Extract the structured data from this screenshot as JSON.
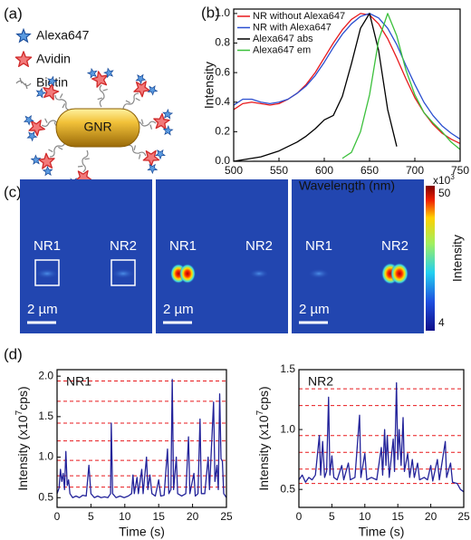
{
  "panel_labels": [
    "(a)",
    "(b)",
    "(c)",
    "(d)"
  ],
  "panel_a": {
    "legend": [
      "Alexa647",
      "Avidin",
      "Biotin"
    ],
    "rod_label": "GNR"
  },
  "panel_c": {
    "images": [
      {
        "labels": [
          "NR1",
          "NR2"
        ],
        "scale_bar": "2 µm"
      },
      {
        "labels": [
          "NR1",
          "NR2"
        ],
        "scale_bar": "2 µm"
      },
      {
        "labels": [
          "NR1",
          "NR2"
        ],
        "scale_bar": "2 µm"
      }
    ],
    "colorbar": {
      "label": "Intensity",
      "multiplier": "x10",
      "exponent": "3",
      "max_label": "50",
      "min_label": "4"
    }
  },
  "chart_data": [
    {
      "type": "line",
      "xlabel": "Wavelength (nm)",
      "ylabel": "Intensity",
      "legend_position": "upper left",
      "x": [
        500,
        510,
        520,
        530,
        540,
        550,
        560,
        570,
        580,
        590,
        600,
        610,
        620,
        630,
        640,
        650,
        660,
        670,
        680,
        690,
        700,
        710,
        720,
        730,
        740,
        750
      ],
      "xlim": [
        500,
        750
      ],
      "xticks": [
        500,
        550,
        600,
        650,
        700,
        750
      ],
      "ylim": [
        0,
        1.03
      ],
      "yticks": [
        {
          "value": 0,
          "label": "0.0"
        },
        0.2,
        0.4,
        0.6,
        0.8,
        {
          "value": 1,
          "label": "1.0"
        }
      ],
      "series": [
        {
          "name": "NR without Alexa647",
          "color": "#e8191c",
          "values": [
            0.35,
            0.39,
            0.4,
            0.39,
            0.38,
            0.39,
            0.42,
            0.46,
            0.52,
            0.6,
            0.7,
            0.8,
            0.89,
            0.96,
            1.0,
            0.99,
            0.93,
            0.83,
            0.7,
            0.56,
            0.43,
            0.33,
            0.25,
            0.19,
            0.15,
            0.12
          ]
        },
        {
          "name": "NR with Alexa647",
          "color": "#2a4fd0",
          "values": [
            0.38,
            0.42,
            0.42,
            0.4,
            0.39,
            0.4,
            0.42,
            0.46,
            0.51,
            0.58,
            0.67,
            0.77,
            0.86,
            0.93,
            0.98,
            1.0,
            0.97,
            0.9,
            0.79,
            0.65,
            0.52,
            0.4,
            0.31,
            0.24,
            0.19,
            0.15
          ]
        },
        {
          "name": "Alexa647 abs",
          "color": "#000000",
          "values": [
            0.0,
            0.01,
            0.02,
            0.03,
            0.05,
            0.07,
            0.1,
            0.13,
            0.17,
            0.22,
            0.28,
            0.31,
            0.44,
            0.66,
            0.9,
            1.0,
            0.75,
            0.35,
            0.1,
            null,
            null,
            null,
            null,
            null,
            null,
            null
          ]
        },
        {
          "name": "Alexa647 em",
          "color": "#3cc03c",
          "values": [
            null,
            null,
            null,
            null,
            null,
            null,
            null,
            null,
            null,
            null,
            null,
            null,
            0.02,
            0.06,
            0.2,
            0.45,
            0.82,
            1.0,
            0.85,
            0.62,
            0.45,
            0.33,
            0.26,
            0.2,
            0.13,
            0.08
          ]
        }
      ]
    },
    {
      "type": "trace",
      "label": "NR1",
      "xlabel": "Time (s)",
      "ylabel": {
        "text": "Intensity (x10",
        "superscript": "7",
        "suffix": "cps)"
      },
      "xlim": [
        0,
        25
      ],
      "xticks": [
        0,
        5,
        10,
        15,
        20,
        25
      ],
      "ylim": [
        0.38,
        2.08
      ],
      "yticks": [
        0.5,
        {
          "value": 1,
          "label": "1.0"
        },
        1.5,
        {
          "value": 2,
          "label": "2.0"
        }
      ],
      "levels": [
        0.63,
        0.77,
        0.96,
        1.2,
        1.42,
        1.69,
        1.94
      ],
      "levels_color": "#e8191c",
      "color": "#23239a",
      "x": [
        0,
        0.3,
        0.5,
        0.7,
        0.9,
        1.1,
        1.3,
        1.5,
        1.7,
        1.9,
        2.3,
        2.8,
        3.3,
        3.8,
        4.3,
        4.7,
        5.0,
        5.5,
        6.0,
        6.5,
        7.0,
        7.5,
        7.9,
        8.0,
        8.2,
        8.7,
        9.3,
        9.9,
        10.5,
        11.0,
        11.2,
        11.4,
        11.8,
        12.0,
        12.5,
        12.7,
        13.2,
        13.4,
        13.7,
        14.0,
        14.5,
        15.0,
        15.3,
        15.8,
        16.3,
        16.5,
        16.8,
        17.0,
        17.2,
        17.6,
        17.8,
        18.4,
        19.0,
        19.4,
        19.6,
        20.2,
        20.4,
        20.8,
        21.1,
        21.3,
        21.8,
        22.3,
        22.5,
        23.1,
        23.3,
        23.6,
        23.8,
        24.0,
        24.2,
        24.4,
        24.6,
        25.0
      ],
      "values": [
        0.55,
        0.62,
        0.85,
        0.7,
        0.8,
        0.6,
        1.07,
        0.65,
        0.72,
        0.55,
        0.5,
        0.52,
        0.5,
        0.53,
        0.52,
        0.9,
        0.55,
        0.5,
        0.52,
        0.5,
        0.51,
        0.5,
        0.55,
        1.42,
        0.55,
        0.5,
        0.52,
        0.5,
        0.52,
        0.55,
        0.78,
        0.55,
        0.75,
        0.55,
        0.85,
        0.55,
        1.0,
        0.6,
        0.78,
        0.55,
        0.52,
        0.72,
        0.52,
        0.53,
        1.1,
        0.55,
        0.6,
        1.96,
        0.6,
        1.0,
        0.55,
        0.52,
        0.55,
        1.25,
        0.55,
        0.8,
        0.52,
        0.55,
        1.47,
        0.55,
        0.55,
        1.0,
        0.6,
        1.68,
        0.7,
        0.9,
        0.6,
        1.78,
        0.98,
        0.95,
        0.55,
        0.5
      ]
    },
    {
      "type": "trace",
      "label": "NR2",
      "xlabel": "Time (s)",
      "ylabel": {
        "text": "Intensity (x10",
        "superscript": "7",
        "suffix": "cps)"
      },
      "xlim": [
        0,
        25
      ],
      "xticks": [
        0,
        5,
        10,
        15,
        20,
        25
      ],
      "ylim": [
        0.35,
        1.5
      ],
      "yticks": [
        0.5,
        {
          "value": 1,
          "label": "1.0"
        },
        1.5
      ],
      "levels": [
        0.55,
        0.67,
        0.81,
        0.95,
        1.2,
        1.34
      ],
      "levels_color": "#e8191c",
      "color": "#23239a",
      "x": [
        0,
        0.5,
        1.0,
        1.5,
        2.0,
        2.5,
        3.1,
        3.3,
        3.6,
        3.9,
        4.2,
        4.5,
        4.7,
        5.0,
        5.3,
        5.8,
        6.5,
        6.8,
        7.5,
        7.8,
        8.5,
        9.2,
        9.4,
        10.0,
        10.3,
        11.0,
        11.8,
        12.5,
        12.7,
        13.0,
        13.2,
        13.4,
        13.7,
        14.3,
        14.5,
        14.8,
        15.0,
        15.2,
        15.5,
        15.8,
        16.0,
        16.5,
        16.8,
        17.2,
        17.5,
        18.0,
        18.3,
        19.0,
        19.5,
        20.0,
        20.3,
        21.0,
        21.3,
        22.2,
        22.4,
        23.0,
        23.3,
        24.0,
        24.5,
        25.0
      ],
      "values": [
        0.58,
        0.62,
        0.56,
        0.6,
        0.58,
        0.62,
        0.95,
        0.62,
        0.9,
        0.6,
        0.65,
        1.27,
        0.62,
        0.78,
        0.6,
        0.58,
        0.7,
        0.58,
        0.72,
        0.58,
        0.6,
        1.12,
        0.6,
        0.8,
        0.58,
        0.6,
        0.58,
        0.85,
        0.62,
        1.0,
        0.7,
        0.95,
        0.6,
        0.92,
        0.65,
        1.39,
        0.75,
        1.0,
        0.7,
        1.1,
        0.65,
        0.8,
        0.6,
        0.75,
        0.6,
        0.72,
        0.58,
        0.6,
        0.58,
        0.7,
        0.57,
        0.75,
        0.58,
        0.9,
        0.6,
        0.72,
        0.56,
        0.55,
        0.5,
        0.48
      ]
    }
  ]
}
